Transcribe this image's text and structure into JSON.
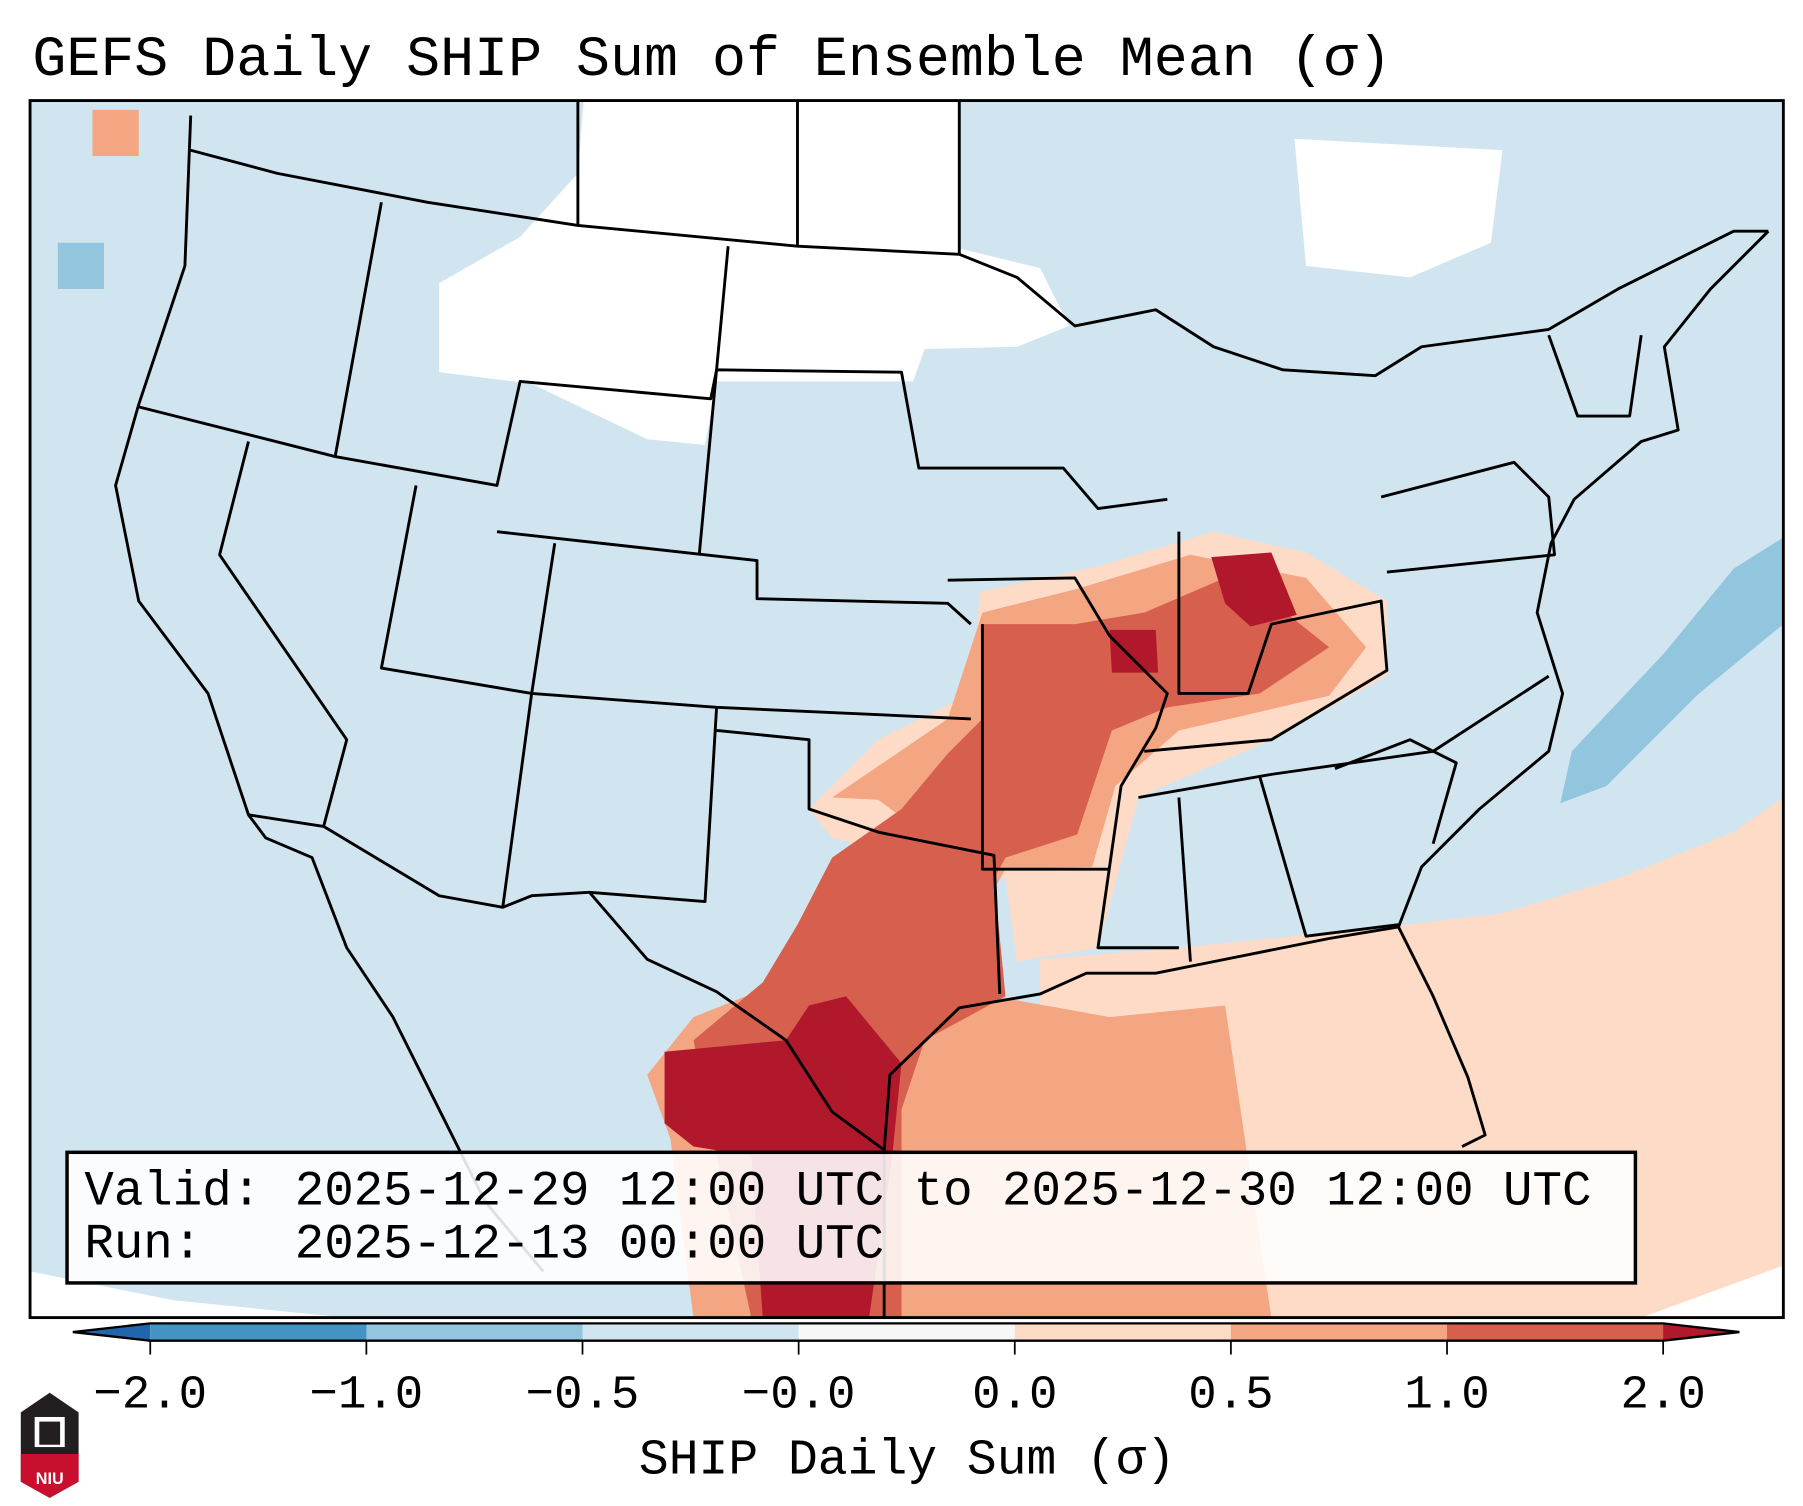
{
  "chart_data": {
    "type": "heatmap",
    "title": "GEFS Daily SHIP Sum of Ensemble Mean (σ)",
    "colorbar": {
      "label": "SHIP Daily Sum (σ)",
      "tick_labels": [
        "−2.0",
        "−1.0",
        "−0.5",
        "−0.0",
        "0.0",
        "0.5",
        "1.0",
        "2.0"
      ],
      "bins": [
        {
          "range": "< -2.0",
          "color": "#2166ac"
        },
        {
          "range": "-2.0 to -1.0",
          "color": "#4393c3"
        },
        {
          "range": "-1.0 to -0.5",
          "color": "#92c5de"
        },
        {
          "range": "-0.5 to -0.0",
          "color": "#d1e5f0"
        },
        {
          "range": "-0.0 to 0.0",
          "color": "#f7f7f7"
        },
        {
          "range": "0.0 to 0.5",
          "color": "#fddbc7"
        },
        {
          "range": "0.5 to 1.0",
          "color": "#f4a582"
        },
        {
          "range": "1.0 to 2.0",
          "color": "#d6604d"
        },
        {
          "range": "> 2.0",
          "color": "#b2182b"
        }
      ],
      "extend": "both",
      "orientation": "horizontal"
    },
    "region": "Contiguous United States",
    "highlights": "Highest values (>2σ) over south Texas / northeast Mexico and the Ohio Valley; elevated values (0.5–2σ) from Texas through Arkansas, Missouri, Illinois, Indiana and Kentucky; near-normal elsewhere"
  },
  "info_box": {
    "valid_label": "Valid:",
    "valid_value": "2025-12-29 12:00 UTC to 2025-12-30 12:00 UTC",
    "run_label": "Run:",
    "run_value": "2025-12-13 00:00 UTC"
  },
  "logo": {
    "text": "NIU"
  }
}
